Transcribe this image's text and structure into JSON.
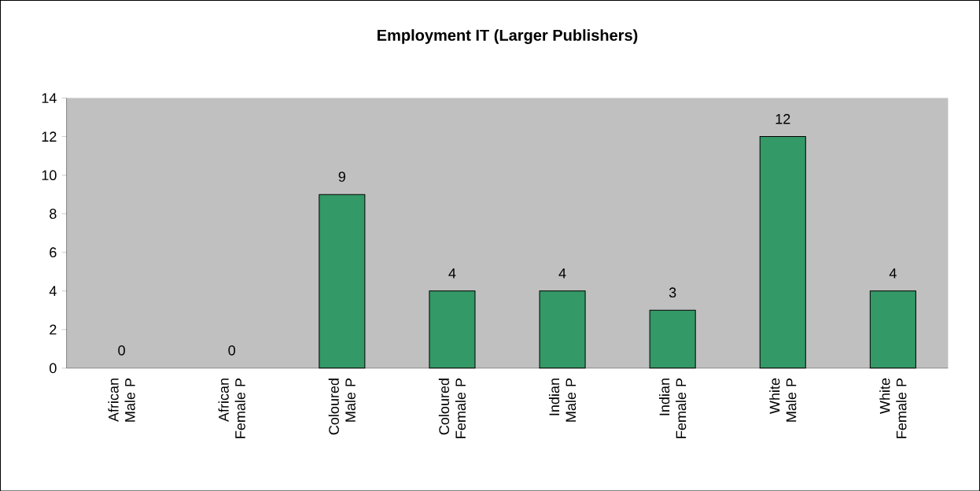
{
  "chart_data": {
    "type": "bar",
    "title": "Employment IT (Larger Publishers)",
    "categories": [
      "African Male P",
      "African Female P",
      "Coloured Male P",
      "Coloured Female P",
      "Indian Male P",
      "Indian Female P",
      "White Male P",
      "White Female P"
    ],
    "values": [
      0,
      0,
      9,
      4,
      4,
      3,
      12,
      4
    ],
    "color": "#339966",
    "ylim": [
      0,
      14
    ],
    "yticks": [
      0,
      2,
      4,
      6,
      8,
      10,
      12,
      14
    ],
    "data_labels": true
  }
}
